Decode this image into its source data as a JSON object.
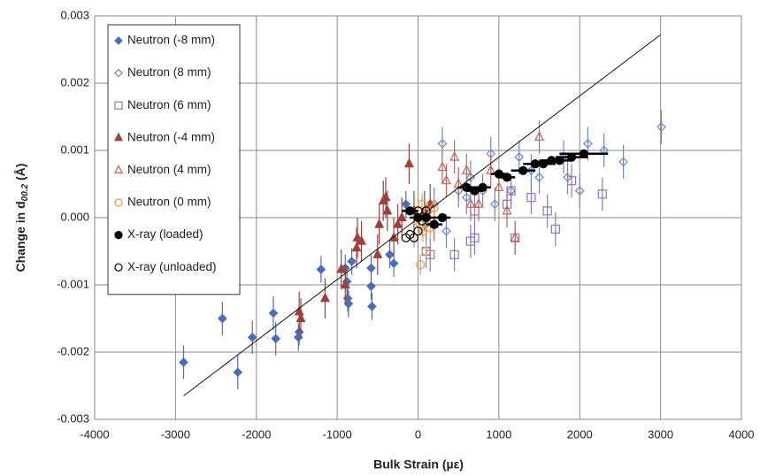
{
  "chart_data": {
    "type": "scatter",
    "xlabel": "Bulk Strain (µε)",
    "ylabel": {
      "text": "Change in d",
      "sub": "00.2",
      "unit": " (Å)"
    },
    "xlim": [
      -4000,
      4000
    ],
    "xticks": [
      -4000,
      -3000,
      -2000,
      -1000,
      0,
      1000,
      2000,
      3000,
      4000
    ],
    "ylim": [
      -0.003,
      0.003
    ],
    "yticks": [
      {
        "value": -0.003,
        "label": "-0.003"
      },
      {
        "value": -0.002,
        "label": "-0.002"
      },
      {
        "value": -0.001,
        "label": "-0.001"
      },
      {
        "value": 0,
        "label": "0.000"
      },
      0.001,
      0.002,
      0.003
    ],
    "grid": true,
    "legend": "upper left",
    "fit_line": {
      "color": "#111111",
      "x": [
        -2900,
        3000
      ],
      "y": [
        -0.00265,
        0.00272
      ]
    },
    "series": [
      {
        "name": "Neutron (-8 mm)",
        "color": "#4a6fb5",
        "marker": "diamond",
        "filled": true,
        "x": [
          -2900,
          -2420,
          -2230,
          -2050,
          -1790,
          -1760,
          -1480,
          -1470,
          -1200,
          -900,
          -880,
          -870,
          -860,
          -820,
          -580,
          -570,
          -580,
          -350,
          -300,
          -150
        ],
        "y": [
          -0.00215,
          -0.0015,
          -0.0023,
          -0.00178,
          -0.00142,
          -0.0018,
          -0.00178,
          -0.0017,
          -0.00077,
          -0.00075,
          -0.00095,
          -0.0012,
          -0.00128,
          -0.00065,
          -0.00102,
          -0.00132,
          -0.00075,
          -0.00055,
          -0.00068,
          0.0002
        ],
        "yerr": [
          0.00025,
          0.00025,
          0.00025,
          0.00025,
          0.00025,
          0.00025,
          0.0002,
          0.0002,
          0.0002,
          0.0002,
          0.0002,
          0.0002,
          0.0002,
          0.0002,
          0.0002,
          0.0002,
          0.0002,
          0.0002,
          0.0002,
          0.0002
        ]
      },
      {
        "name": "Neutron (8 mm)",
        "color": "#6d87c4",
        "marker": "diamond",
        "filled": false,
        "x": [
          100,
          200,
          300,
          350,
          500,
          600,
          650,
          800,
          900,
          950,
          1150,
          1250,
          1400,
          1500,
          1800,
          1850,
          2000,
          2100,
          2300,
          2540,
          3010
        ],
        "y": [
          -0.0001,
          0.0002,
          0.0011,
          -0.0002,
          0.0004,
          0.0003,
          0.0006,
          0.0004,
          0.00095,
          0.0002,
          0.0004,
          0.0009,
          0.0007,
          0.0006,
          0.0009,
          0.0006,
          0.0004,
          0.0011,
          0.001,
          0.00083,
          0.00135
        ],
        "yerr": [
          0.00025,
          0.00025,
          0.00025,
          0.00025,
          0.00025,
          0.00025,
          0.00025,
          0.00025,
          0.00025,
          0.00025,
          0.00025,
          0.00025,
          0.00025,
          0.00025,
          0.00025,
          0.00025,
          0.00025,
          0.00025,
          0.00025,
          0.00025,
          0.00025
        ]
      },
      {
        "name": "Neutron (6 mm)",
        "color": "#8a78b8",
        "marker": "square",
        "filled": false,
        "x": [
          100,
          150,
          450,
          650,
          700,
          700,
          1100,
          1150,
          1200,
          1400,
          1600,
          1700,
          1900,
          2280
        ],
        "y": [
          -0.0005,
          -0.00055,
          -0.00055,
          -0.00035,
          0.0001,
          -0.0003,
          0.0002,
          0.0004,
          -0.0003,
          0.0003,
          0.0001,
          -0.00017,
          0.00055,
          0.00035
        ],
        "yerr": [
          0.00025,
          0.00025,
          0.00025,
          0.00025,
          0.00025,
          0.00025,
          0.00025,
          0.00025,
          0.00025,
          0.00025,
          0.00025,
          0.00025,
          0.00025,
          0.00025
        ]
      },
      {
        "name": "Neutron (-4 mm)",
        "color": "#a0403c",
        "marker": "triangle",
        "filled": true,
        "x": [
          -1450,
          -1470,
          -1150,
          -950,
          -900,
          -760,
          -750,
          -700,
          -500,
          -480,
          -430,
          -400,
          -380,
          -300,
          -250,
          -200,
          -110,
          -50,
          80,
          150
        ],
        "y": [
          -0.0015,
          -0.0014,
          -0.0012,
          -0.00077,
          -0.001,
          -0.00045,
          -0.0003,
          -0.00035,
          -0.00055,
          -0.0001,
          0.00025,
          0.0003,
          0.0001,
          -0.0003,
          -0.0001,
          0,
          0.0008,
          0.0001,
          0.0001,
          0.0002
        ],
        "yerr": [
          0.0003,
          0.0003,
          0.0003,
          0.0003,
          0.0003,
          0.0003,
          0.0003,
          0.0003,
          0.0003,
          0.0003,
          0.0003,
          0.0003,
          0.0003,
          0.0003,
          0.0003,
          0.0003,
          0.0003,
          0.0003,
          0.0003,
          0.0003
        ]
      },
      {
        "name": "Neutron (4 mm)",
        "color": "#c0665f",
        "marker": "triangle",
        "filled": false,
        "x": [
          200,
          300,
          350,
          450,
          500,
          600,
          650,
          750,
          900,
          1000,
          1100,
          1500,
          1200
        ],
        "y": [
          -0.0001,
          0.00075,
          0.00055,
          0.0009,
          0.0005,
          0.0007,
          0.0002,
          0.0002,
          0.0007,
          0.00045,
          0.0001,
          0.0012,
          -0.0003
        ],
        "yerr": [
          0.00025,
          0.00025,
          0.00025,
          0.00025,
          0.00025,
          0.00025,
          0.00025,
          0.00025,
          0.00025,
          0.00025,
          0.00025,
          0.00025,
          0.00025
        ]
      },
      {
        "name": "Neutron (0 mm)",
        "color": "#e09a50",
        "marker": "circle",
        "filled": false,
        "x": [
          -50,
          0,
          20,
          30,
          50,
          60,
          80,
          100,
          120,
          150,
          200
        ],
        "y": [
          -0.0003,
          0.0001,
          -0.0001,
          -0.0007,
          0.0002,
          -0.0002,
          0,
          -0.0005,
          0.0001,
          -0.00015,
          0.00015
        ],
        "yerr": [
          0.00015,
          0.00015,
          0.00015,
          0.00015,
          0.00015,
          0.00015,
          0.00015,
          0.00015,
          0.00015,
          0.00015,
          0.00015
        ]
      },
      {
        "name": "X-ray (loaded)",
        "color": "#000000",
        "marker": "circle",
        "filled": true,
        "x": [
          -100,
          0,
          100,
          200,
          300,
          600,
          700,
          800,
          1000,
          1100,
          1300,
          1450,
          1550,
          1650,
          1750,
          1900,
          2050
        ],
        "y": [
          0.0001,
          0,
          0,
          -0.0001,
          0,
          0.00045,
          0.0004,
          0.00045,
          0.00065,
          0.0006,
          0.0007,
          0.0008,
          0.0008,
          0.00085,
          0.00085,
          0.0009,
          0.00095
        ],
        "xerr": [
          100,
          100,
          100,
          100,
          100,
          100,
          100,
          100,
          100,
          100,
          150,
          150,
          150,
          150,
          150,
          200,
          300
        ]
      },
      {
        "name": "X-ray (unloaded)",
        "color": "#000000",
        "marker": "circle",
        "filled": false,
        "x": [
          -150,
          -100,
          -50,
          0,
          50,
          100,
          0
        ],
        "y": [
          -0.0003,
          -0.00025,
          -0.0003,
          -0.0002,
          -5e-05,
          0.0001,
          0.0001
        ]
      }
    ]
  }
}
